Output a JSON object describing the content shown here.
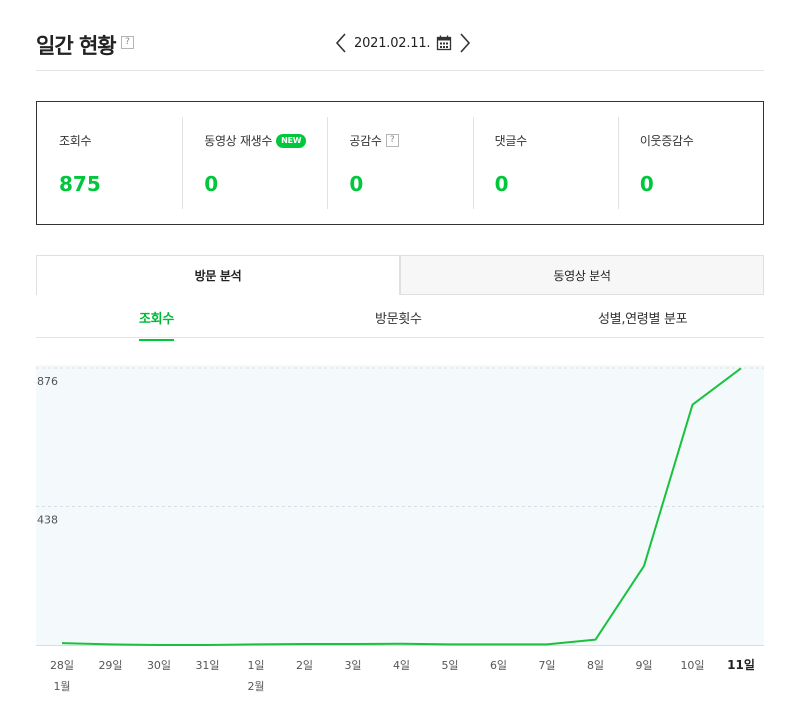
{
  "header": {
    "title": "일간 현황",
    "help": "?",
    "date": "2021.02.11."
  },
  "stats": [
    {
      "label": "조회수",
      "value": "875",
      "badge": "",
      "help": ""
    },
    {
      "label": "동영상 재생수",
      "value": "0",
      "badge": "NEW",
      "help": ""
    },
    {
      "label": "공감수",
      "value": "0",
      "badge": "",
      "help": "?"
    },
    {
      "label": "댓글수",
      "value": "0",
      "badge": "",
      "help": ""
    },
    {
      "label": "이웃증감수",
      "value": "0",
      "badge": "",
      "help": ""
    }
  ],
  "main_tabs": [
    "방문 분석",
    "동영상 분석"
  ],
  "sub_tabs": [
    "조회수",
    "방문횟수",
    "성별,연령별 분포"
  ],
  "colors": {
    "accent": "#00c73c",
    "chart_fill": "#f4fafc",
    "line": "#19c13f"
  },
  "chart_data": {
    "type": "line",
    "categories": [
      "28일",
      "29일",
      "30일",
      "31일",
      "1일",
      "2일",
      "3일",
      "4일",
      "5일",
      "6일",
      "7일",
      "8일",
      "9일",
      "10일",
      "11일"
    ],
    "month_labels": [
      {
        "index": 0,
        "label": "1월"
      },
      {
        "index": 4,
        "label": "2월"
      }
    ],
    "series": [
      {
        "name": "",
        "values": [
          6,
          2,
          0,
          0,
          2,
          3,
          3,
          4,
          2,
          2,
          2,
          17,
          250,
          760,
          875
        ]
      }
    ],
    "y_ticks": [
      438,
      876
    ],
    "ylim": [
      0,
      876
    ],
    "highlight_category": "11일"
  }
}
